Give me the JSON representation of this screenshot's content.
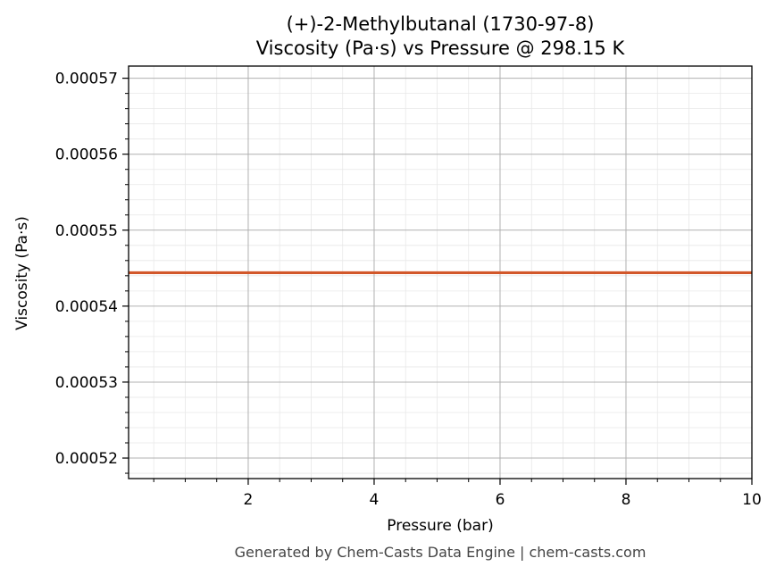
{
  "chart_data": {
    "type": "line",
    "title_line1": "(+)-2-Methylbutanal (1730-97-8)",
    "title_line2": "Viscosity (Pa·s) vs Pressure @ 298.15 K",
    "xlabel": "Pressure (bar)",
    "ylabel": "Viscosity (Pa·s)",
    "xlim": [
      0.1,
      10
    ],
    "ylim": [
      0.0005173,
      0.0005716
    ],
    "x_ticks": [
      2,
      4,
      6,
      8,
      10
    ],
    "x_tick_labels": [
      "2",
      "4",
      "6",
      "8",
      "10"
    ],
    "y_ticks": [
      0.00052,
      0.00053,
      0.00054,
      0.00055,
      0.00056,
      0.00057
    ],
    "y_tick_labels": [
      "0.00052",
      "0.00053",
      "0.00054",
      "0.00055",
      "0.00056",
      "0.00057"
    ],
    "grid": true,
    "series": [
      {
        "color": "#d2572a",
        "x": [
          0.1,
          10
        ],
        "y": [
          0.0005444,
          0.0005444
        ]
      }
    ]
  },
  "footer": "Generated by Chem-Casts Data Engine | chem-casts.com"
}
